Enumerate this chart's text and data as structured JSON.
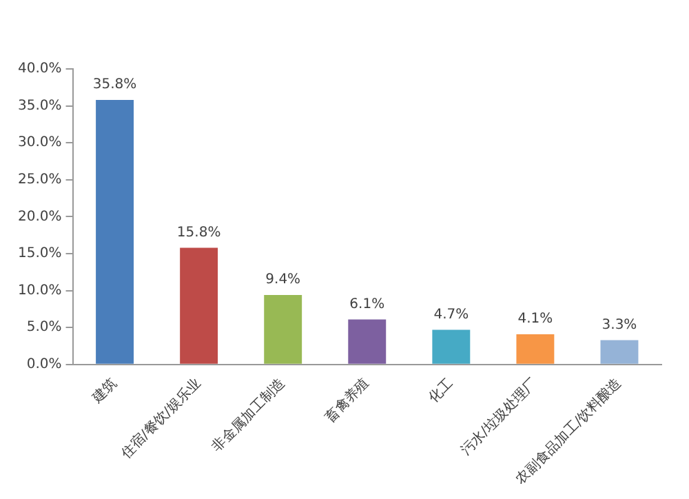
{
  "chart_data": {
    "type": "bar",
    "categories": [
      "建筑",
      "住宿/餐饮/娱乐业",
      "非金属加工制造",
      "畜禽养殖",
      "化工",
      "污水/垃圾处理厂",
      "农副食品加工/饮料酿造"
    ],
    "values": [
      35.8,
      15.8,
      9.4,
      6.1,
      4.7,
      4.1,
      3.3
    ],
    "colors": [
      "#4a7ebb",
      "#be4b48",
      "#98b954",
      "#7d60a0",
      "#46aac5",
      "#f79646",
      "#95b3d7"
    ],
    "value_labels": [
      "35.8%",
      "15.8%",
      "9.4%",
      "6.1%",
      "4.7%",
      "4.1%",
      "3.3%"
    ],
    "ylim": [
      0,
      40
    ],
    "yticks": [
      {
        "value": 0,
        "label": "0.0%"
      },
      {
        "value": 5,
        "label": "5.0%"
      },
      {
        "value": 10,
        "label": "10.0%"
      },
      {
        "value": 15,
        "label": "15.0%"
      },
      {
        "value": 20,
        "label": "20.0%"
      },
      {
        "value": 25,
        "label": "25.0%"
      },
      {
        "value": 30,
        "label": "30.0%"
      },
      {
        "value": 35,
        "label": "35.0%"
      },
      {
        "value": 40,
        "label": "40.0%"
      }
    ],
    "grid": false,
    "legend": false
  }
}
